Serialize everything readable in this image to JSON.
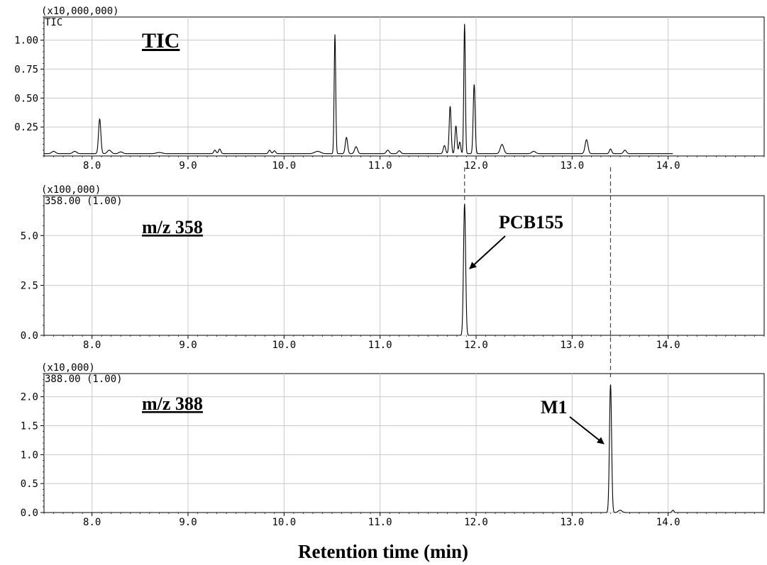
{
  "xlabel": "Retention time (min)",
  "chart_data": [
    {
      "type": "line",
      "id": "tic",
      "scale_label": "(x10,000,000)",
      "trace_label": "TIC",
      "title": "TIC",
      "xlim": [
        7.5,
        15.0
      ],
      "ylim": [
        0.0,
        1.2
      ],
      "xticks": [
        "8.0",
        "9.0",
        "10.0",
        "11.0",
        "12.0",
        "13.0",
        "14.0"
      ],
      "yticks": [
        "0.25",
        "0.50",
        "0.75",
        "1.00"
      ],
      "grid": true,
      "series": [
        {
          "baseline": 0.02,
          "x_end": 14.05,
          "peaks": [
            [
              7.6,
              0.02,
              0.02
            ],
            [
              7.82,
              0.02,
              0.02
            ],
            [
              8.08,
              0.3,
              0.012
            ],
            [
              8.18,
              0.03,
              0.02
            ],
            [
              8.3,
              0.015,
              0.02
            ],
            [
              8.7,
              0.01,
              0.03
            ],
            [
              9.28,
              0.03,
              0.012
            ],
            [
              9.33,
              0.04,
              0.012
            ],
            [
              9.85,
              0.03,
              0.012
            ],
            [
              9.9,
              0.025,
              0.012
            ],
            [
              10.35,
              0.02,
              0.03
            ],
            [
              10.53,
              1.03,
              0.008
            ],
            [
              10.65,
              0.14,
              0.012
            ],
            [
              10.75,
              0.06,
              0.015
            ],
            [
              11.08,
              0.03,
              0.015
            ],
            [
              11.2,
              0.025,
              0.015
            ],
            [
              11.67,
              0.07,
              0.012
            ],
            [
              11.73,
              0.41,
              0.01
            ],
            [
              11.79,
              0.24,
              0.01
            ],
            [
              11.83,
              0.1,
              0.01
            ],
            [
              11.88,
              1.12,
              0.008
            ],
            [
              11.98,
              0.6,
              0.01
            ],
            [
              12.27,
              0.08,
              0.018
            ],
            [
              12.6,
              0.02,
              0.02
            ],
            [
              13.15,
              0.12,
              0.015
            ],
            [
              13.4,
              0.04,
              0.012
            ],
            [
              13.55,
              0.03,
              0.015
            ]
          ]
        }
      ],
      "annotation": "TIC"
    },
    {
      "type": "line",
      "id": "mz358",
      "scale_label": "(x100,000)",
      "trace_label": "358.00 (1.00)",
      "title": "m/z 358",
      "xlim": [
        7.5,
        15.0
      ],
      "ylim": [
        0.0,
        7.0
      ],
      "xticks": [
        "8.0",
        "9.0",
        "10.0",
        "11.0",
        "12.0",
        "13.0",
        "14.0"
      ],
      "yticks": [
        "0.0",
        "2.5",
        "5.0"
      ],
      "grid": true,
      "series": [
        {
          "baseline": 0.0,
          "x_end": 15.0,
          "peaks": [
            [
              11.88,
              6.6,
              0.011
            ]
          ]
        }
      ],
      "annotation": "PCB155"
    },
    {
      "type": "line",
      "id": "mz388",
      "scale_label": "(x10,000)",
      "trace_label": "388.00 (1.00)",
      "title": "m/z 388",
      "xlim": [
        7.5,
        15.0
      ],
      "ylim": [
        0.0,
        2.4
      ],
      "xticks": [
        "8.0",
        "9.0",
        "10.0",
        "11.0",
        "12.0",
        "13.0",
        "14.0"
      ],
      "yticks": [
        "0.0",
        "0.5",
        "1.0",
        "1.5",
        "2.0"
      ],
      "grid": true,
      "series": [
        {
          "baseline": 0.0,
          "x_end": 15.0,
          "peaks": [
            [
              13.4,
              2.22,
              0.011
            ],
            [
              13.5,
              0.04,
              0.02
            ],
            [
              14.05,
              0.04,
              0.01
            ]
          ]
        }
      ],
      "annotation": "M1"
    }
  ]
}
